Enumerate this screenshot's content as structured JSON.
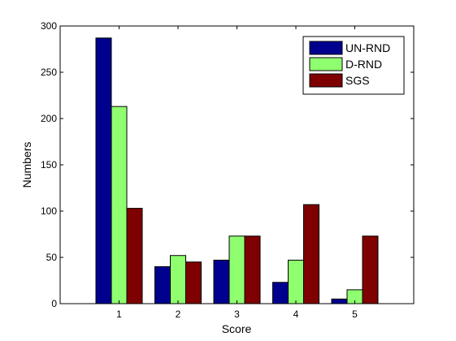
{
  "chart_data": {
    "type": "bar",
    "title": "",
    "xlabel": "Score",
    "ylabel": "Numbers",
    "categories": [
      "1",
      "2",
      "3",
      "4",
      "5"
    ],
    "ylim": [
      0,
      300
    ],
    "yticks": [
      0,
      50,
      100,
      150,
      200,
      250,
      300
    ],
    "grid": false,
    "legend_position": "top-right",
    "series": [
      {
        "name": "UN-RND",
        "color": "#00008f",
        "values": [
          287,
          40,
          47,
          23,
          5
        ]
      },
      {
        "name": "D-RND",
        "color": "#8fff70",
        "values": [
          213,
          52,
          73,
          47,
          15
        ]
      },
      {
        "name": "SGS",
        "color": "#7f0000",
        "values": [
          103,
          45,
          73,
          107,
          73
        ]
      }
    ]
  }
}
